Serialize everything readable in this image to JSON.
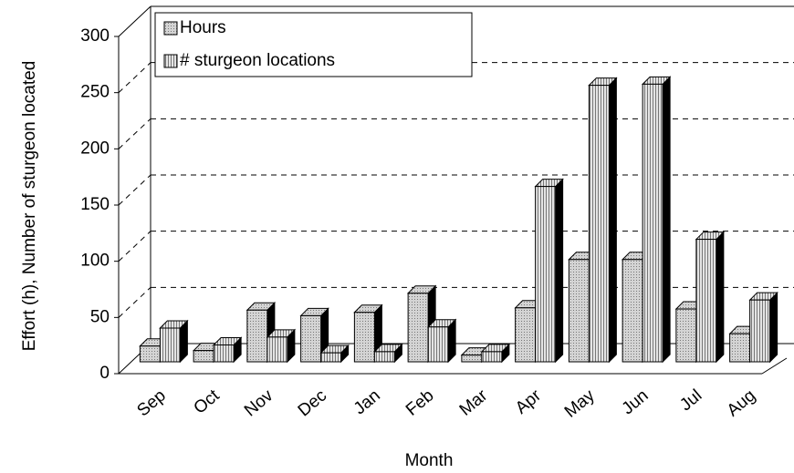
{
  "chart_data": {
    "type": "bar3d",
    "x_label": "Month",
    "y_label": "Effort (h), Number of sturgeon located",
    "categories": [
      "Sep",
      "Oct",
      "Nov",
      "Dec",
      "Jan",
      "Feb",
      "Mar",
      "Apr",
      "May",
      "Jun",
      "Jul",
      "Aug"
    ],
    "series": [
      {
        "name": "Hours",
        "color": "#d4d4d4",
        "values": [
          14,
          10,
          46,
          41,
          44,
          61,
          6,
          48,
          91,
          91,
          47,
          25
        ]
      },
      {
        "name": "# sturgeon locations",
        "color": "#e4e4e4",
        "values": [
          30,
          15,
          22,
          8,
          9,
          31,
          9,
          156,
          246,
          247,
          109,
          55
        ]
      }
    ],
    "ylim": [
      0,
      300
    ],
    "yticks": [
      0,
      50,
      100,
      150,
      200,
      250,
      300
    ],
    "grid": true,
    "legend": "top-left"
  }
}
